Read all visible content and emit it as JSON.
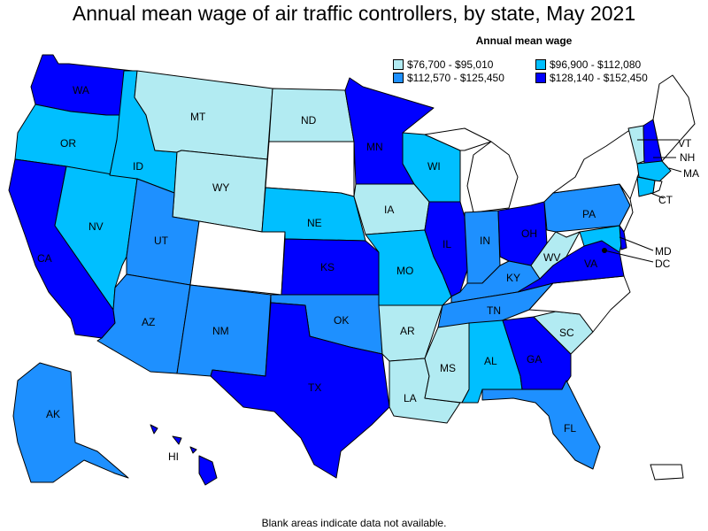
{
  "title": "Annual mean wage of air traffic controllers, by state, May 2021",
  "legend": {
    "title": "Annual mean wage",
    "items": [
      {
        "label": "$76,700 - $95,010",
        "color": "#b2ebf2"
      },
      {
        "label": "$96,900 - $112,080",
        "color": "#00bfff"
      },
      {
        "label": "$112,570 - $125,450",
        "color": "#1e90ff"
      },
      {
        "label": "$128,140 - $152,450",
        "color": "#0000ff"
      }
    ]
  },
  "footnote": "Blank areas indicate data not available.",
  "states": {
    "WA": {
      "tier": 4
    },
    "OR": {
      "tier": 2
    },
    "CA": {
      "tier": 4
    },
    "ID": {
      "tier": 2
    },
    "NV": {
      "tier": 2
    },
    "MT": {
      "tier": 1
    },
    "WY": {
      "tier": 1
    },
    "UT": {
      "tier": 3
    },
    "AZ": {
      "tier": 3
    },
    "CO": {
      "tier": 0
    },
    "NM": {
      "tier": 3
    },
    "ND": {
      "tier": 1
    },
    "SD": {
      "tier": 0
    },
    "NE": {
      "tier": 2
    },
    "KS": {
      "tier": 4
    },
    "OK": {
      "tier": 3
    },
    "TX": {
      "tier": 4
    },
    "MN": {
      "tier": 4
    },
    "IA": {
      "tier": 1
    },
    "MO": {
      "tier": 2
    },
    "AR": {
      "tier": 1
    },
    "LA": {
      "tier": 1
    },
    "WI": {
      "tier": 2
    },
    "IL": {
      "tier": 4
    },
    "MI": {
      "tier": 0
    },
    "IN": {
      "tier": 3
    },
    "OH": {
      "tier": 4
    },
    "KY": {
      "tier": 3
    },
    "TN": {
      "tier": 3
    },
    "MS": {
      "tier": 1
    },
    "AL": {
      "tier": 2
    },
    "GA": {
      "tier": 4
    },
    "FL": {
      "tier": 3
    },
    "SC": {
      "tier": 1
    },
    "NC": {
      "tier": 0
    },
    "VA": {
      "tier": 4
    },
    "WV": {
      "tier": 1
    },
    "PA": {
      "tier": 3
    },
    "NY": {
      "tier": 0
    },
    "VT": {
      "tier": 1
    },
    "NH": {
      "tier": 4
    },
    "ME": {
      "tier": 0
    },
    "MA": {
      "tier": 2
    },
    "CT": {
      "tier": 2
    },
    "RI": {
      "tier": 0
    },
    "NJ": {
      "tier": 0
    },
    "DE": {
      "tier": 4
    },
    "MD": {
      "tier": 2
    },
    "DC": {
      "tier": 4
    },
    "AK": {
      "tier": 3
    },
    "HI": {
      "tier": 4
    },
    "PR": {
      "tier": 0
    }
  }
}
